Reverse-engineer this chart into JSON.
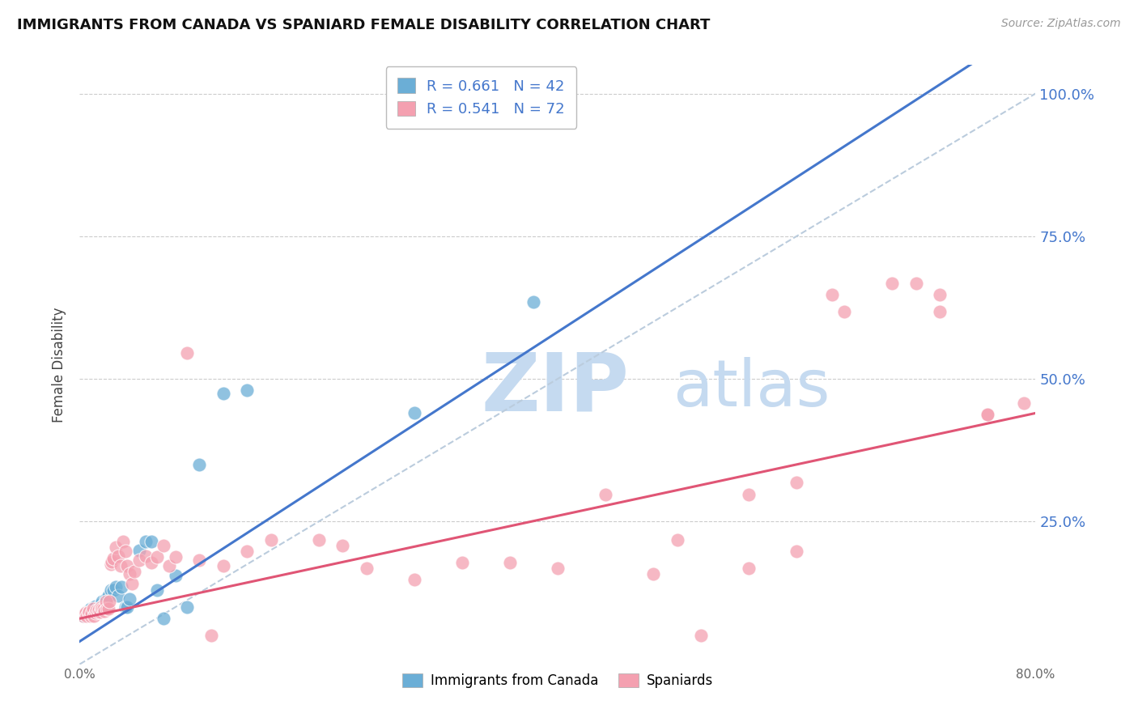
{
  "title": "IMMIGRANTS FROM CANADA VS SPANIARD FEMALE DISABILITY CORRELATION CHART",
  "source": "Source: ZipAtlas.com",
  "ylabel": "Female Disability",
  "xlim": [
    0.0,
    0.8
  ],
  "ylim": [
    0.0,
    1.05
  ],
  "yticks": [
    0.25,
    0.5,
    0.75,
    1.0
  ],
  "ytick_labels": [
    "25.0%",
    "50.0%",
    "75.0%",
    "100.0%"
  ],
  "xticks": [
    0.0,
    0.1,
    0.2,
    0.3,
    0.4,
    0.5,
    0.6,
    0.7,
    0.8
  ],
  "xtick_labels": [
    "0.0%",
    "",
    "",
    "",
    "",
    "",
    "",
    "",
    "80.0%"
  ],
  "legend1_R": "0.661",
  "legend1_N": "42",
  "legend2_R": "0.541",
  "legend2_N": "72",
  "blue_color": "#6baed6",
  "pink_color": "#f4a0b0",
  "blue_line_color": "#4477cc",
  "pink_line_color": "#e05575",
  "diag_color": "#bbccdd",
  "blue_x": [
    0.003,
    0.005,
    0.006,
    0.007,
    0.008,
    0.009,
    0.009,
    0.01,
    0.011,
    0.012,
    0.012,
    0.013,
    0.013,
    0.014,
    0.015,
    0.016,
    0.017,
    0.018,
    0.019,
    0.02,
    0.022,
    0.024,
    0.026,
    0.028,
    0.03,
    0.032,
    0.035,
    0.038,
    0.04,
    0.042,
    0.05,
    0.055,
    0.06,
    0.065,
    0.07,
    0.08,
    0.09,
    0.1,
    0.12,
    0.14,
    0.28,
    0.38
  ],
  "blue_y": [
    0.085,
    0.09,
    0.092,
    0.088,
    0.095,
    0.09,
    0.098,
    0.093,
    0.096,
    0.091,
    0.1,
    0.095,
    0.102,
    0.093,
    0.097,
    0.1,
    0.105,
    0.1,
    0.11,
    0.105,
    0.115,
    0.12,
    0.13,
    0.13,
    0.135,
    0.12,
    0.135,
    0.1,
    0.1,
    0.115,
    0.2,
    0.215,
    0.215,
    0.13,
    0.08,
    0.155,
    0.1,
    0.35,
    0.475,
    0.48,
    0.44,
    0.635
  ],
  "pink_x": [
    0.003,
    0.004,
    0.005,
    0.006,
    0.007,
    0.008,
    0.009,
    0.01,
    0.011,
    0.012,
    0.013,
    0.014,
    0.015,
    0.016,
    0.017,
    0.018,
    0.019,
    0.02,
    0.021,
    0.022,
    0.023,
    0.024,
    0.025,
    0.026,
    0.027,
    0.028,
    0.03,
    0.032,
    0.034,
    0.036,
    0.038,
    0.04,
    0.042,
    0.044,
    0.046,
    0.05,
    0.055,
    0.06,
    0.065,
    0.07,
    0.075,
    0.08,
    0.09,
    0.1,
    0.11,
    0.12,
    0.14,
    0.16,
    0.2,
    0.22,
    0.24,
    0.28,
    0.32,
    0.36,
    0.4,
    0.44,
    0.48,
    0.52,
    0.56,
    0.6,
    0.64,
    0.68,
    0.72,
    0.76,
    0.5,
    0.56,
    0.6,
    0.63,
    0.7,
    0.72,
    0.76,
    0.79
  ],
  "pink_y": [
    0.085,
    0.088,
    0.09,
    0.085,
    0.09,
    0.092,
    0.085,
    0.09,
    0.098,
    0.085,
    0.09,
    0.095,
    0.092,
    0.096,
    0.092,
    0.1,
    0.097,
    0.098,
    0.093,
    0.11,
    0.098,
    0.098,
    0.11,
    0.175,
    0.18,
    0.185,
    0.205,
    0.19,
    0.172,
    0.215,
    0.198,
    0.172,
    0.158,
    0.142,
    0.162,
    0.182,
    0.19,
    0.178,
    0.188,
    0.208,
    0.172,
    0.188,
    0.545,
    0.182,
    0.05,
    0.172,
    0.198,
    0.218,
    0.218,
    0.208,
    0.168,
    0.148,
    0.178,
    0.178,
    0.168,
    0.298,
    0.158,
    0.05,
    0.168,
    0.318,
    0.618,
    0.668,
    0.618,
    0.438,
    0.218,
    0.298,
    0.198,
    0.648,
    0.668,
    0.648,
    0.438,
    0.458
  ]
}
